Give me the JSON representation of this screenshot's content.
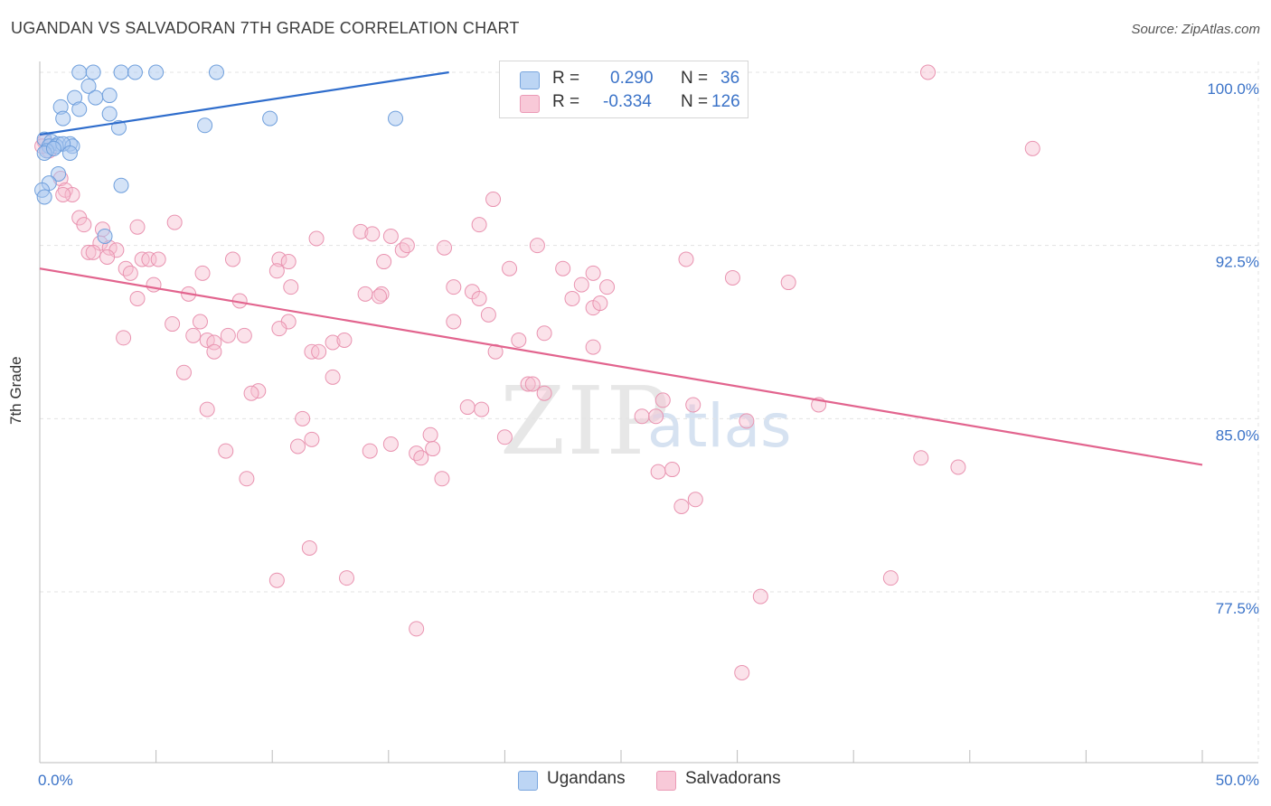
{
  "header": {
    "title": "UGANDAN VS SALVADORAN 7TH GRADE CORRELATION CHART",
    "source": "Source: ZipAtlas.com"
  },
  "watermark": {
    "part1": "ZIP",
    "part2": "atlas"
  },
  "legend": {
    "r_label": "R =",
    "n_label": "N =",
    "series": [
      {
        "r": "0.290",
        "n": "36"
      },
      {
        "r": "-0.334",
        "n": "126"
      }
    ]
  },
  "colors": {
    "ugandans_fill": "#a9c8f0",
    "ugandans_stroke": "#6f9fdc",
    "ugandans_line": "#2f6dcc",
    "salvadorans_fill": "#f6bfd0",
    "salvadorans_stroke": "#e993b0",
    "salvadorans_line": "#e2648e",
    "tick_label": "#3b73c8",
    "grid": "#e3e3e3"
  },
  "chart_data": {
    "type": "scatter",
    "title": "UGANDAN VS SALVADORAN 7TH GRADE CORRELATION CHART",
    "xlabel": "",
    "ylabel": "7th Grade",
    "xlim": [
      0,
      50
    ],
    "ylim": [
      70.5,
      100.2
    ],
    "x_tick_labels": [
      "0.0%",
      "50.0%"
    ],
    "y_ticks": [
      {
        "value": 100.0,
        "label": "100.0%"
      },
      {
        "value": 92.5,
        "label": "92.5%"
      },
      {
        "value": 85.0,
        "label": "85.0%"
      },
      {
        "value": 77.5,
        "label": "77.5%"
      }
    ],
    "grid": true,
    "legend_position": "top-center",
    "series": [
      {
        "name": "Ugandans",
        "r": 0.29,
        "n": 36,
        "trend": {
          "x": [
            0,
            17.6
          ],
          "y": [
            97.3,
            100.0
          ]
        },
        "points": [
          [
            1.7,
            100.0
          ],
          [
            2.3,
            100.0
          ],
          [
            3.5,
            100.0
          ],
          [
            4.1,
            100.0
          ],
          [
            5.0,
            100.0
          ],
          [
            7.6,
            100.0
          ],
          [
            2.1,
            99.4
          ],
          [
            1.5,
            98.9
          ],
          [
            3.0,
            99.0
          ],
          [
            2.4,
            98.9
          ],
          [
            0.9,
            98.5
          ],
          [
            1.7,
            98.4
          ],
          [
            3.0,
            98.2
          ],
          [
            1.0,
            98.0
          ],
          [
            9.9,
            98.0
          ],
          [
            15.3,
            98.0
          ],
          [
            3.4,
            97.6
          ],
          [
            7.1,
            97.7
          ],
          [
            0.2,
            97.1
          ],
          [
            0.5,
            97.0
          ],
          [
            0.8,
            96.9
          ],
          [
            1.3,
            96.9
          ],
          [
            0.4,
            96.8
          ],
          [
            0.7,
            96.8
          ],
          [
            1.4,
            96.8
          ],
          [
            1.0,
            96.9
          ],
          [
            0.3,
            96.6
          ],
          [
            1.3,
            96.5
          ],
          [
            0.2,
            96.5
          ],
          [
            0.8,
            95.6
          ],
          [
            0.4,
            95.2
          ],
          [
            3.5,
            95.1
          ],
          [
            0.1,
            94.9
          ],
          [
            0.2,
            94.6
          ],
          [
            2.8,
            92.9
          ],
          [
            0.6,
            96.7
          ]
        ]
      },
      {
        "name": "Salvadorans",
        "r": -0.334,
        "n": 126,
        "trend": {
          "x": [
            0,
            50
          ],
          "y": [
            91.5,
            83.0
          ]
        },
        "points": [
          [
            38.2,
            100.0
          ],
          [
            42.7,
            96.7
          ],
          [
            0.2,
            97.0
          ],
          [
            0.4,
            96.6
          ],
          [
            0.9,
            95.4
          ],
          [
            1.1,
            94.9
          ],
          [
            1.4,
            94.7
          ],
          [
            1.0,
            94.7
          ],
          [
            19.5,
            94.5
          ],
          [
            1.7,
            93.7
          ],
          [
            1.9,
            93.4
          ],
          [
            2.7,
            93.2
          ],
          [
            5.8,
            93.5
          ],
          [
            4.2,
            93.3
          ],
          [
            18.9,
            93.4
          ],
          [
            13.8,
            93.1
          ],
          [
            14.3,
            93.0
          ],
          [
            15.1,
            92.9
          ],
          [
            11.9,
            92.8
          ],
          [
            2.6,
            92.6
          ],
          [
            3.0,
            92.4
          ],
          [
            3.3,
            92.3
          ],
          [
            2.1,
            92.2
          ],
          [
            2.3,
            92.2
          ],
          [
            15.6,
            92.3
          ],
          [
            15.8,
            92.5
          ],
          [
            17.4,
            92.4
          ],
          [
            21.4,
            92.5
          ],
          [
            2.9,
            92.0
          ],
          [
            4.4,
            91.9
          ],
          [
            4.7,
            91.9
          ],
          [
            5.1,
            91.9
          ],
          [
            8.3,
            91.9
          ],
          [
            10.3,
            91.9
          ],
          [
            10.7,
            91.8
          ],
          [
            14.8,
            91.8
          ],
          [
            27.8,
            91.9
          ],
          [
            3.7,
            91.5
          ],
          [
            3.9,
            91.3
          ],
          [
            7.0,
            91.3
          ],
          [
            10.2,
            91.4
          ],
          [
            20.2,
            91.5
          ],
          [
            22.5,
            91.5
          ],
          [
            23.8,
            91.3
          ],
          [
            29.8,
            91.1
          ],
          [
            4.9,
            90.8
          ],
          [
            10.8,
            90.7
          ],
          [
            14.0,
            90.4
          ],
          [
            14.7,
            90.4
          ],
          [
            17.8,
            90.7
          ],
          [
            18.6,
            90.5
          ],
          [
            23.3,
            90.8
          ],
          [
            24.4,
            90.7
          ],
          [
            32.2,
            90.9
          ],
          [
            4.2,
            90.2
          ],
          [
            6.4,
            90.4
          ],
          [
            8.6,
            90.1
          ],
          [
            14.6,
            90.3
          ],
          [
            18.9,
            90.2
          ],
          [
            22.9,
            90.2
          ],
          [
            23.8,
            89.8
          ],
          [
            24.1,
            90.0
          ],
          [
            3.6,
            88.5
          ],
          [
            5.7,
            89.1
          ],
          [
            6.9,
            89.2
          ],
          [
            10.7,
            89.2
          ],
          [
            17.8,
            89.2
          ],
          [
            19.3,
            89.5
          ],
          [
            21.7,
            88.7
          ],
          [
            6.6,
            88.6
          ],
          [
            7.2,
            88.4
          ],
          [
            7.5,
            88.3
          ],
          [
            8.1,
            88.6
          ],
          [
            8.8,
            88.6
          ],
          [
            10.3,
            88.9
          ],
          [
            12.6,
            88.3
          ],
          [
            13.1,
            88.4
          ],
          [
            20.6,
            88.4
          ],
          [
            23.8,
            88.1
          ],
          [
            7.5,
            87.9
          ],
          [
            11.7,
            87.9
          ],
          [
            12.0,
            87.9
          ],
          [
            19.6,
            87.9
          ],
          [
            6.2,
            87.0
          ],
          [
            12.6,
            86.8
          ],
          [
            21.0,
            86.5
          ],
          [
            21.2,
            86.5
          ],
          [
            21.7,
            86.1
          ],
          [
            9.4,
            86.2
          ],
          [
            9.1,
            86.1
          ],
          [
            7.2,
            85.4
          ],
          [
            18.4,
            85.5
          ],
          [
            19.0,
            85.4
          ],
          [
            25.9,
            85.1
          ],
          [
            26.5,
            85.1
          ],
          [
            26.8,
            85.8
          ],
          [
            28.1,
            85.6
          ],
          [
            30.4,
            84.9
          ],
          [
            33.5,
            85.6
          ],
          [
            11.3,
            85.0
          ],
          [
            16.8,
            84.3
          ],
          [
            20.0,
            84.2
          ],
          [
            11.7,
            84.1
          ],
          [
            15.1,
            83.9
          ],
          [
            8.0,
            83.6
          ],
          [
            11.1,
            83.8
          ],
          [
            14.2,
            83.6
          ],
          [
            16.2,
            83.5
          ],
          [
            16.4,
            83.3
          ],
          [
            16.9,
            83.7
          ],
          [
            37.9,
            83.3
          ],
          [
            39.5,
            82.9
          ],
          [
            26.6,
            82.7
          ],
          [
            27.2,
            82.8
          ],
          [
            8.9,
            82.4
          ],
          [
            17.3,
            82.4
          ],
          [
            27.6,
            81.2
          ],
          [
            28.2,
            81.5
          ],
          [
            11.6,
            79.4
          ],
          [
            10.2,
            78.0
          ],
          [
            13.2,
            78.1
          ],
          [
            36.6,
            78.1
          ],
          [
            31.0,
            77.3
          ],
          [
            16.2,
            75.9
          ],
          [
            30.2,
            74.0
          ],
          [
            0.1,
            96.8
          ]
        ]
      }
    ]
  }
}
